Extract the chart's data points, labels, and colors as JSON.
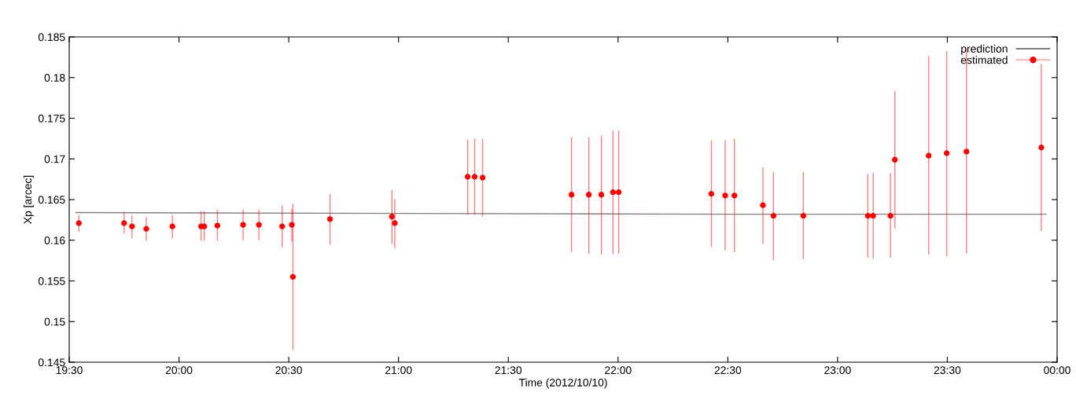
{
  "chart_data": {
    "type": "scatter",
    "xlabel": "Time (2012/10/10)",
    "ylabel": "Xp [arcec]",
    "xlim": [
      19.5,
      24
    ],
    "ylim": [
      0.145,
      0.185
    ],
    "xticks": [
      {
        "value": 19.5,
        "label": "19:30"
      },
      {
        "value": 20,
        "label": "20:00"
      },
      {
        "value": 20.5,
        "label": "20:30"
      },
      {
        "value": 21,
        "label": "21:00"
      },
      {
        "value": 21.5,
        "label": "21:30"
      },
      {
        "value": 22,
        "label": "22:00"
      },
      {
        "value": 22.5,
        "label": "22:30"
      },
      {
        "value": 23,
        "label": "23:00"
      },
      {
        "value": 23.5,
        "label": "23:30"
      },
      {
        "value": 24,
        "label": "00:00"
      }
    ],
    "yticks": [
      0.145,
      0.15,
      0.155,
      0.16,
      0.165,
      0.17,
      0.175,
      0.18,
      0.185
    ],
    "grid": false,
    "legend": "top right",
    "series": [
      {
        "name": "prediction",
        "type": "line",
        "color": "#808080",
        "marker": "none",
        "x": [
          19.53,
          21.0,
          22.5,
          23.95
        ],
        "values": [
          0.1634,
          0.1633,
          0.1632,
          0.1632
        ]
      },
      {
        "name": "estimated",
        "color": "#ff0000",
        "marker": "circle",
        "x": [
          19.544,
          19.75,
          19.786,
          19.851,
          19.97,
          20.101,
          20.115,
          20.175,
          20.292,
          20.364,
          20.47,
          20.514,
          20.519,
          20.688,
          20.97,
          20.983,
          21.315,
          21.347,
          21.383,
          21.788,
          21.867,
          21.924,
          21.977,
          22.003,
          22.425,
          22.488,
          22.53,
          22.66,
          22.708,
          22.844,
          23.138,
          23.162,
          23.241,
          23.261,
          23.415,
          23.497,
          23.587,
          23.928
        ],
        "values": [
          0.1621,
          0.1621,
          0.1617,
          0.1614,
          0.1617,
          0.1617,
          0.1617,
          0.1618,
          0.1619,
          0.1619,
          0.1617,
          0.1619,
          0.1555,
          0.1626,
          0.1629,
          0.1621,
          0.1678,
          0.1678,
          0.1677,
          0.1656,
          0.1656,
          0.1656,
          0.1659,
          0.1659,
          0.1657,
          0.1655,
          0.1655,
          0.1643,
          0.163,
          0.163,
          0.163,
          0.163,
          0.163,
          0.1699,
          0.1704,
          0.1707,
          0.1709,
          0.1714
        ],
        "errors": [
          [
            0.1611,
            0.163
          ],
          [
            0.1609,
            0.1634
          ],
          [
            0.1603,
            0.163
          ],
          [
            0.16,
            0.1628
          ],
          [
            0.1603,
            0.163
          ],
          [
            0.16,
            0.1635
          ],
          [
            0.16,
            0.1635
          ],
          [
            0.16,
            0.1637
          ],
          [
            0.1601,
            0.1637
          ],
          [
            0.1601,
            0.1637
          ],
          [
            0.1592,
            0.1642
          ],
          [
            0.1599,
            0.1638
          ],
          [
            0.1466,
            0.1644
          ],
          [
            0.1595,
            0.1656
          ],
          [
            0.1596,
            0.1661
          ],
          [
            0.1591,
            0.165
          ],
          [
            0.1632,
            0.1723
          ],
          [
            0.1632,
            0.1724
          ],
          [
            0.163,
            0.1724
          ],
          [
            0.1586,
            0.1726
          ],
          [
            0.1584,
            0.1726
          ],
          [
            0.1583,
            0.1728
          ],
          [
            0.1584,
            0.1734
          ],
          [
            0.1584,
            0.1734
          ],
          [
            0.1592,
            0.1722
          ],
          [
            0.1588,
            0.1722
          ],
          [
            0.1586,
            0.1724
          ],
          [
            0.1596,
            0.1689
          ],
          [
            0.1576,
            0.1683
          ],
          [
            0.1577,
            0.1683
          ],
          [
            0.1579,
            0.1681
          ],
          [
            0.1578,
            0.1682
          ],
          [
            0.1579,
            0.1682
          ],
          [
            0.1615,
            0.1783
          ],
          [
            0.1583,
            0.1826
          ],
          [
            0.1581,
            0.1832
          ],
          [
            0.1584,
            0.1835
          ],
          [
            0.1612,
            0.1816
          ]
        ]
      }
    ]
  }
}
